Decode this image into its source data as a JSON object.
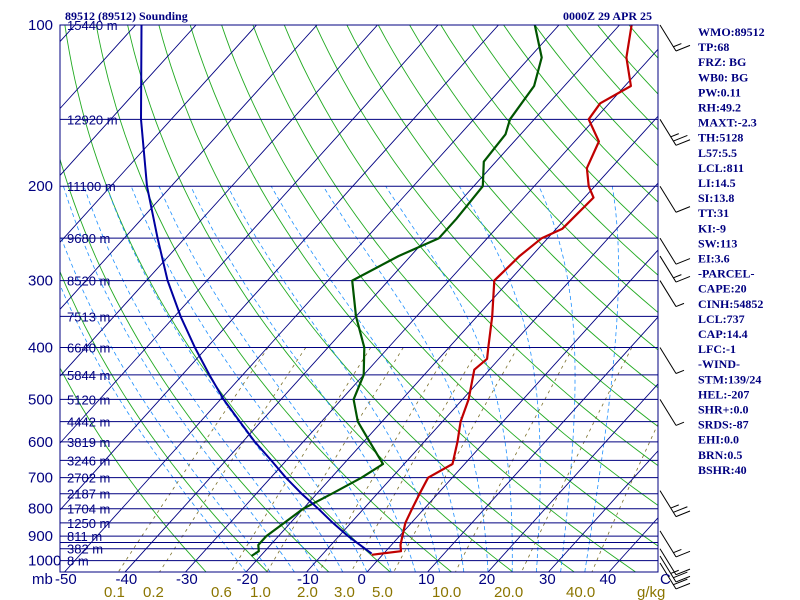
{
  "header": {
    "station": "89512 (89512) Sounding",
    "time": "0000Z 29 APR 25"
  },
  "colors": {
    "frame": "#000080",
    "isobar": "#000080",
    "isotherm": "#000080",
    "dry_adiabat": "#22aa22",
    "moist_adiabat": "#1e90ff",
    "mixing_ratio": "#7a6f2a",
    "temperature": "#c00000",
    "dewpoint": "#005500",
    "parcel": "#0000a0",
    "wind_barb": "#000000"
  },
  "chart_data": {
    "type": "skew-t",
    "title": "89512 (89512) Sounding",
    "time": "0000Z 29 APR 25",
    "pressure_axis": {
      "unit": "mb",
      "scale": "log",
      "range": [
        1050,
        100
      ],
      "labels": [
        "100",
        "200",
        "300",
        "400",
        "500",
        "600",
        "700",
        "800",
        "900",
        "1000"
      ]
    },
    "isobar_levels": [
      100,
      150,
      200,
      250,
      300,
      350,
      400,
      450,
      500,
      550,
      600,
      650,
      700,
      750,
      800,
      850,
      900,
      925,
      950,
      1000
    ],
    "temperature_axis": {
      "unit": "C",
      "labels": [
        "-50",
        "-40",
        "-30",
        "-20",
        "-10",
        "0",
        "10",
        "20",
        "30",
        "40",
        "C"
      ],
      "range": [
        -50,
        40
      ]
    },
    "mixing_ratio_axis": {
      "unit": "g/kg",
      "labels": [
        "0.1",
        "0.2",
        "0.6",
        "1.0",
        "2.0",
        "3.0",
        "5.0",
        "10.0",
        "20.0",
        "40.0",
        "g/kg"
      ],
      "values": [
        0.1,
        0.2,
        0.6,
        1.0,
        2.0,
        3.0,
        5.0,
        10.0,
        20.0,
        40.0
      ]
    },
    "height_labels": [
      {
        "p": 100,
        "label": "15440 m"
      },
      {
        "p": 150,
        "label": "12920 m"
      },
      {
        "p": 200,
        "label": "11100 m"
      },
      {
        "p": 250,
        "label": "9680 m"
      },
      {
        "p": 300,
        "label": "8520 m"
      },
      {
        "p": 350,
        "label": "7513 m"
      },
      {
        "p": 400,
        "label": "6640 m"
      },
      {
        "p": 450,
        "label": "5844 m"
      },
      {
        "p": 500,
        "label": "5120 m"
      },
      {
        "p": 550,
        "label": "4442 m"
      },
      {
        "p": 600,
        "label": "3819 m"
      },
      {
        "p": 650,
        "label": "3246 m"
      },
      {
        "p": 700,
        "label": "2702 m"
      },
      {
        "p": 750,
        "label": "2187 m"
      },
      {
        "p": 800,
        "label": "1704 m"
      },
      {
        "p": 850,
        "label": "1250 m"
      },
      {
        "p": 900,
        "label": "811 m"
      },
      {
        "p": 950,
        "label": "382 m"
      },
      {
        "p": 1000,
        "label": "8 m"
      }
    ],
    "series": [
      {
        "name": "Temperature",
        "points": [
          {
            "p": 975,
            "t": -1.8
          },
          {
            "p": 960,
            "t": 2.5
          },
          {
            "p": 935,
            "t": 1.5
          },
          {
            "p": 900,
            "t": 0.5
          },
          {
            "p": 850,
            "t": -1.0
          },
          {
            "p": 800,
            "t": -2.0
          },
          {
            "p": 750,
            "t": -3.0
          },
          {
            "p": 700,
            "t": -4.0
          },
          {
            "p": 660,
            "t": -2.0
          },
          {
            "p": 600,
            "t": -4.5
          },
          {
            "p": 550,
            "t": -7.0
          },
          {
            "p": 500,
            "t": -9.0
          },
          {
            "p": 440,
            "t": -12.5
          },
          {
            "p": 420,
            "t": -12.0
          },
          {
            "p": 400,
            "t": -13.5
          },
          {
            "p": 350,
            "t": -17.5
          },
          {
            "p": 300,
            "t": -22.5
          },
          {
            "p": 270,
            "t": -22.0
          },
          {
            "p": 250,
            "t": -21.0
          },
          {
            "p": 240,
            "t": -19.0
          },
          {
            "p": 210,
            "t": -18.5
          },
          {
            "p": 200,
            "t": -21.0
          },
          {
            "p": 185,
            "t": -24.0
          },
          {
            "p": 165,
            "t": -26.0
          },
          {
            "p": 150,
            "t": -31.0
          },
          {
            "p": 140,
            "t": -31.5
          },
          {
            "p": 130,
            "t": -29.0
          },
          {
            "p": 115,
            "t": -34.0
          },
          {
            "p": 100,
            "t": -38.0
          }
        ]
      },
      {
        "name": "Dewpoint",
        "points": [
          {
            "p": 980,
            "t": -21.5
          },
          {
            "p": 960,
            "t": -21.0
          },
          {
            "p": 935,
            "t": -22.0
          },
          {
            "p": 900,
            "t": -22.0
          },
          {
            "p": 850,
            "t": -21.0
          },
          {
            "p": 800,
            "t": -20.0
          },
          {
            "p": 750,
            "t": -17.5
          },
          {
            "p": 700,
            "t": -15.0
          },
          {
            "p": 660,
            "t": -13.5
          },
          {
            "p": 600,
            "t": -19.0
          },
          {
            "p": 550,
            "t": -24.0
          },
          {
            "p": 500,
            "t": -28.0
          },
          {
            "p": 450,
            "t": -30.0
          },
          {
            "p": 400,
            "t": -34.0
          },
          {
            "p": 350,
            "t": -40.0
          },
          {
            "p": 300,
            "t": -46.0
          },
          {
            "p": 270,
            "t": -42.0
          },
          {
            "p": 250,
            "t": -38.0
          },
          {
            "p": 230,
            "t": -38.0
          },
          {
            "p": 200,
            "t": -38.5
          },
          {
            "p": 180,
            "t": -42.0
          },
          {
            "p": 160,
            "t": -42.5
          },
          {
            "p": 150,
            "t": -44.0
          },
          {
            "p": 130,
            "t": -45.0
          },
          {
            "p": 115,
            "t": -48.0
          },
          {
            "p": 100,
            "t": -54.0
          }
        ]
      },
      {
        "name": "Parcel",
        "points": [
          {
            "p": 970,
            "t": -2.0
          },
          {
            "p": 900,
            "t": -8.5
          },
          {
            "p": 850,
            "t": -13.0
          },
          {
            "p": 800,
            "t": -17.5
          },
          {
            "p": 750,
            "t": -22.5
          },
          {
            "p": 700,
            "t": -27.5
          },
          {
            "p": 650,
            "t": -32.5
          },
          {
            "p": 600,
            "t": -38.0
          },
          {
            "p": 550,
            "t": -43.5
          },
          {
            "p": 500,
            "t": -49.5
          },
          {
            "p": 450,
            "t": -55.5
          },
          {
            "p": 400,
            "t": -62.0
          },
          {
            "p": 350,
            "t": -69.0
          },
          {
            "p": 300,
            "t": -76.5
          },
          {
            "p": 250,
            "t": -84.5
          },
          {
            "p": 200,
            "t": -94.0
          },
          {
            "p": 150,
            "t": -105.0
          },
          {
            "p": 100,
            "t": -119.0
          }
        ]
      }
    ],
    "wind_barbs": [
      {
        "p": 100,
        "speed_kt": 15
      },
      {
        "p": 150,
        "speed_kt": 25
      },
      {
        "p": 200,
        "speed_kt": 10
      },
      {
        "p": 250,
        "speed_kt": 10
      },
      {
        "p": 270,
        "speed_kt": 15
      },
      {
        "p": 300,
        "speed_kt": 5
      },
      {
        "p": 400,
        "speed_kt": 5
      },
      {
        "p": 500,
        "speed_kt": 5
      },
      {
        "p": 740,
        "speed_kt": 25
      },
      {
        "p": 880,
        "speed_kt": 15
      },
      {
        "p": 950,
        "speed_kt": 10
      },
      {
        "p": 980,
        "speed_kt": 25
      },
      {
        "p": 1010,
        "speed_kt": 20
      }
    ]
  },
  "indices": [
    "WMO:89512",
    "TP:68",
    "FRZ: BG",
    "WB0: BG",
    "PW:0.11",
    "RH:49.2",
    "MAXT:-2.3",
    "TH:5128",
    "L57:5.5",
    "LCL:811",
    "LI:14.5",
    "SI:13.8",
    "TT:31",
    "KI:-9",
    "SW:113",
    "EI:3.6",
    "-PARCEL-",
    "CAPE:20",
    "CINH:54852",
    "LCL:737",
    "CAP:14.4",
    "LFC:-1",
    "-WIND-",
    "STM:139/24",
    "HEL:-207",
    "SHR+:0.0",
    "SRDS:-87",
    "EHI:0.0",
    "BRN:0.5",
    "BSHR:40"
  ]
}
